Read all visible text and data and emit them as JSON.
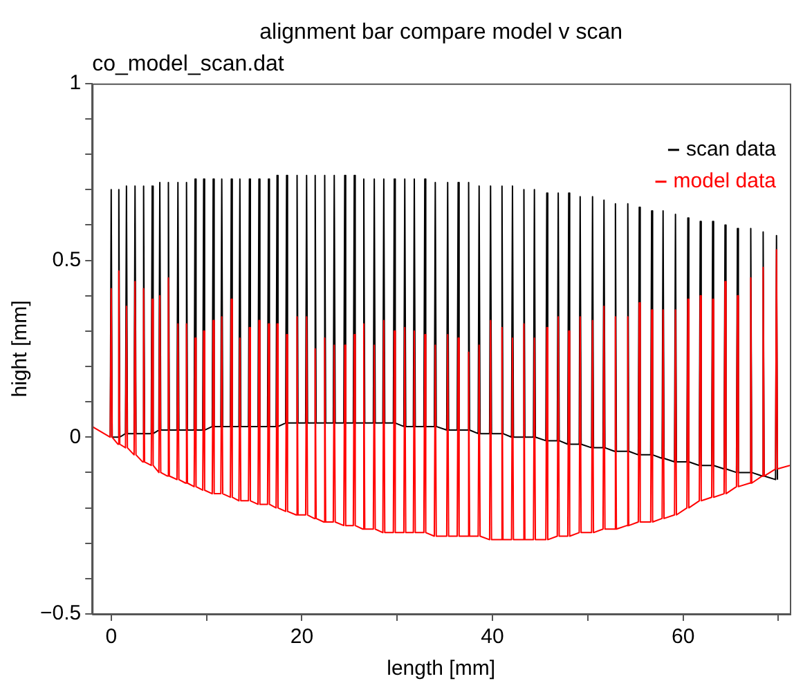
{
  "chart_data": {
    "type": "line",
    "title": "alignment bar compare model v scan",
    "subtitle": "co_model_scan.dat",
    "xlabel": "length [mm]",
    "ylabel": "hight [mm]",
    "xlim": [
      -2,
      71.2
    ],
    "ylim": [
      -0.5,
      1
    ],
    "xticks": [
      0,
      {
        "value": 10,
        "label": null
      },
      20,
      {
        "value": 30,
        "label": null
      },
      40,
      {
        "value": 50,
        "label": null
      },
      60,
      {
        "value": 70,
        "label": null
      }
    ],
    "yticks": [
      {
        "value": -0.5,
        "label": "−0.5"
      },
      {
        "value": -0.4,
        "label": null
      },
      {
        "value": -0.3,
        "label": null
      },
      {
        "value": -0.2,
        "label": null
      },
      {
        "value": -0.1,
        "label": null
      },
      0,
      {
        "value": 0.1,
        "label": null
      },
      {
        "value": 0.2,
        "label": null
      },
      {
        "value": 0.3,
        "label": null
      },
      {
        "value": 0.4,
        "label": null
      },
      0.5,
      {
        "value": 0.6,
        "label": null
      },
      {
        "value": 0.7,
        "label": null
      },
      {
        "value": 0.8,
        "label": null
      },
      {
        "value": 0.9,
        "label": null
      },
      1
    ],
    "legend": "top right",
    "marker": "none",
    "line_style": "solid",
    "series": [
      {
        "name": "scan data",
        "color": "#000000",
        "x": [
          -0.1,
          0,
          0.1,
          0.7,
          0.8,
          0.9,
          1.5,
          1.6,
          1.7,
          2.4,
          2.5,
          2.6,
          3.3,
          3.4,
          3.5,
          4.2,
          4.3,
          4.4,
          5.0,
          5.1,
          5.2,
          5.9,
          6.0,
          6.1,
          6.9,
          7.0,
          7.1,
          7.8,
          7.9,
          8.0,
          8.7,
          8.8,
          8.9,
          9.6,
          9.7,
          9.8,
          10.6,
          10.7,
          10.8,
          11.5,
          11.6,
          11.7,
          12.5,
          12.6,
          12.7,
          13.4,
          13.5,
          13.6,
          14.4,
          14.5,
          14.6,
          15.4,
          15.5,
          15.6,
          16.4,
          16.5,
          16.6,
          17.3,
          17.4,
          17.5,
          18.3,
          18.4,
          18.5,
          19.4,
          19.5,
          19.6,
          20.4,
          20.5,
          20.6,
          21.3,
          21.4,
          21.5,
          22.3,
          22.4,
          22.5,
          23.3,
          23.4,
          23.5,
          24.4,
          24.5,
          24.6,
          25.4,
          25.5,
          25.6,
          26.4,
          26.5,
          26.6,
          27.5,
          27.6,
          27.7,
          28.5,
          28.6,
          28.7,
          29.6,
          29.7,
          29.8,
          30.7,
          30.8,
          30.9,
          31.7,
          31.8,
          31.9,
          32.8,
          32.9,
          33.0,
          33.9,
          34.0,
          34.1,
          35.2,
          35.3,
          35.4,
          36.3,
          36.4,
          36.5,
          37.4,
          37.5,
          37.6,
          38.5,
          38.6,
          38.7,
          39.7,
          39.8,
          39.9,
          40.9,
          41.0,
          41.1,
          42.0,
          42.1,
          42.2,
          43.2,
          43.3,
          43.4,
          44.3,
          44.4,
          44.5,
          45.6,
          45.7,
          45.8,
          46.8,
          46.9,
          47.0,
          47.9,
          48.0,
          48.1,
          49.1,
          49.2,
          49.3,
          50.4,
          50.5,
          50.6,
          51.6,
          51.7,
          51.8,
          52.8,
          52.9,
          53.0,
          54.1,
          54.2,
          54.3,
          55.3,
          55.4,
          55.5,
          56.6,
          56.7,
          56.8,
          57.8,
          57.9,
          58.0,
          59.1,
          59.2,
          59.3,
          60.4,
          60.5,
          60.6,
          61.7,
          61.8,
          61.9,
          63.0,
          63.1,
          63.2,
          64.3,
          64.4,
          64.5,
          65.6,
          65.7,
          65.8,
          67.0,
          67.1,
          67.2,
          68.3,
          68.4,
          68.5,
          69.7,
          69.8,
          69.9
        ],
        "values": [
          0,
          0.7,
          0,
          0,
          0.7,
          0,
          0.01,
          0.71,
          0.01,
          0.01,
          0.71,
          0.01,
          0.01,
          0.71,
          0.01,
          0.01,
          0.71,
          0.01,
          0.02,
          0.72,
          0.02,
          0.02,
          0.72,
          0.02,
          0.02,
          0.72,
          0.02,
          0.02,
          0.72,
          0.02,
          0.02,
          0.73,
          0.02,
          0.02,
          0.73,
          0.02,
          0.03,
          0.73,
          0.03,
          0.03,
          0.73,
          0.03,
          0.03,
          0.73,
          0.03,
          0.03,
          0.73,
          0.03,
          0.03,
          0.73,
          0.03,
          0.03,
          0.73,
          0.03,
          0.03,
          0.73,
          0.03,
          0.03,
          0.74,
          0.03,
          0.04,
          0.74,
          0.04,
          0.04,
          0.74,
          0.04,
          0.04,
          0.74,
          0.04,
          0.04,
          0.74,
          0.04,
          0.04,
          0.74,
          0.04,
          0.04,
          0.74,
          0.04,
          0.04,
          0.74,
          0.04,
          0.04,
          0.74,
          0.04,
          0.04,
          0.73,
          0.04,
          0.04,
          0.73,
          0.04,
          0.04,
          0.73,
          0.04,
          0.04,
          0.73,
          0.04,
          0.03,
          0.73,
          0.03,
          0.03,
          0.73,
          0.03,
          0.03,
          0.73,
          0.03,
          0.03,
          0.72,
          0.03,
          0.02,
          0.72,
          0.02,
          0.02,
          0.72,
          0.02,
          0.02,
          0.72,
          0.02,
          0.01,
          0.71,
          0.01,
          0.01,
          0.71,
          0.01,
          0.01,
          0.71,
          0.01,
          0,
          0.71,
          0,
          0,
          0.7,
          0,
          0,
          0.7,
          0,
          -0.01,
          0.69,
          -0.01,
          -0.01,
          0.69,
          -0.01,
          -0.02,
          0.69,
          -0.02,
          -0.02,
          0.68,
          -0.02,
          -0.03,
          0.68,
          -0.03,
          -0.03,
          0.67,
          -0.03,
          -0.04,
          0.66,
          -0.04,
          -0.04,
          0.66,
          -0.04,
          -0.05,
          0.65,
          -0.05,
          -0.05,
          0.64,
          -0.05,
          -0.06,
          0.64,
          -0.06,
          -0.07,
          0.63,
          -0.07,
          -0.07,
          0.62,
          -0.07,
          -0.08,
          0.61,
          -0.08,
          -0.08,
          0.61,
          -0.08,
          -0.09,
          0.6,
          -0.09,
          -0.1,
          0.59,
          -0.1,
          -0.1,
          0.59,
          -0.1,
          -0.11,
          0.58,
          -0.11,
          -0.12,
          0.57,
          -0.12
        ]
      },
      {
        "name": "model data",
        "color": "#ff0000",
        "x": [
          -2,
          -0.1,
          0,
          0.1,
          0.7,
          0.8,
          0.9,
          1.5,
          1.6,
          1.7,
          2.4,
          2.5,
          2.6,
          3.3,
          3.4,
          3.5,
          4.2,
          4.3,
          4.4,
          5.0,
          5.1,
          5.2,
          5.9,
          6.0,
          6.1,
          6.9,
          7.0,
          7.1,
          7.8,
          7.9,
          8.0,
          8.7,
          8.8,
          8.9,
          9.6,
          9.7,
          9.8,
          10.6,
          10.7,
          10.8,
          11.5,
          11.6,
          11.7,
          12.5,
          12.6,
          12.7,
          13.4,
          13.5,
          13.6,
          14.4,
          14.5,
          14.6,
          15.4,
          15.5,
          15.6,
          16.4,
          16.5,
          16.6,
          17.3,
          17.4,
          17.5,
          18.3,
          18.4,
          18.5,
          19.4,
          19.5,
          19.6,
          20.4,
          20.5,
          20.6,
          21.3,
          21.4,
          21.5,
          22.3,
          22.4,
          22.5,
          23.3,
          23.4,
          23.5,
          24.4,
          24.5,
          24.6,
          25.4,
          25.5,
          25.6,
          26.4,
          26.5,
          26.6,
          27.5,
          27.6,
          27.7,
          28.5,
          28.6,
          28.7,
          29.6,
          29.7,
          29.8,
          30.7,
          30.8,
          30.9,
          31.7,
          31.8,
          31.9,
          32.8,
          32.9,
          33.0,
          33.9,
          34.0,
          34.1,
          35.2,
          35.3,
          35.4,
          36.3,
          36.4,
          36.5,
          37.4,
          37.5,
          37.6,
          38.5,
          38.6,
          38.7,
          39.7,
          39.8,
          39.9,
          40.9,
          41.0,
          41.1,
          42.0,
          42.1,
          42.2,
          43.2,
          43.3,
          43.4,
          44.3,
          44.4,
          44.5,
          45.6,
          45.7,
          45.8,
          46.8,
          46.9,
          47.0,
          47.9,
          48.0,
          48.1,
          49.1,
          49.2,
          49.3,
          50.4,
          50.5,
          50.6,
          51.6,
          51.7,
          51.8,
          52.8,
          52.9,
          53.0,
          54.1,
          54.2,
          54.3,
          55.3,
          55.4,
          55.5,
          56.6,
          56.7,
          56.8,
          57.8,
          57.9,
          58.0,
          59.1,
          59.2,
          59.3,
          60.4,
          60.5,
          60.6,
          61.7,
          61.8,
          61.9,
          63.0,
          63.1,
          63.2,
          64.3,
          64.4,
          64.5,
          65.6,
          65.7,
          65.8,
          67.0,
          67.1,
          67.2,
          68.3,
          68.4,
          68.5,
          69.7,
          69.8,
          69.9,
          71.2
        ],
        "values": [
          0.03,
          0,
          0.42,
          0,
          -0.02,
          0.47,
          -0.02,
          -0.03,
          0.37,
          -0.03,
          -0.05,
          0.44,
          -0.05,
          -0.07,
          0.42,
          -0.07,
          -0.08,
          0.39,
          -0.08,
          -0.1,
          0.4,
          -0.1,
          -0.11,
          0.45,
          -0.11,
          -0.12,
          0.32,
          -0.12,
          -0.13,
          0.32,
          -0.13,
          -0.14,
          0.28,
          -0.14,
          -0.15,
          0.3,
          -0.15,
          -0.16,
          0.33,
          -0.16,
          -0.16,
          0.34,
          -0.16,
          -0.17,
          0.39,
          -0.17,
          -0.18,
          0.28,
          -0.18,
          -0.18,
          0.31,
          -0.18,
          -0.19,
          0.33,
          -0.19,
          -0.19,
          0.32,
          -0.19,
          -0.2,
          0.32,
          -0.2,
          -0.21,
          0.29,
          -0.21,
          -0.22,
          0.34,
          -0.22,
          -0.22,
          0.34,
          -0.22,
          -0.23,
          0.25,
          -0.23,
          -0.24,
          0.28,
          -0.24,
          -0.24,
          0.26,
          -0.24,
          -0.25,
          0.26,
          -0.25,
          -0.25,
          0.29,
          -0.25,
          -0.26,
          0.32,
          -0.26,
          -0.26,
          0.26,
          -0.26,
          -0.27,
          0.33,
          -0.27,
          -0.27,
          0.3,
          -0.27,
          -0.27,
          0.31,
          -0.27,
          -0.27,
          0.3,
          -0.27,
          -0.27,
          0.29,
          -0.27,
          -0.28,
          0.26,
          -0.28,
          -0.28,
          0.29,
          -0.28,
          -0.28,
          0.28,
          -0.28,
          -0.28,
          0.24,
          -0.28,
          -0.28,
          0.26,
          -0.28,
          -0.29,
          0.33,
          -0.29,
          -0.29,
          0.31,
          -0.29,
          -0.29,
          0.28,
          -0.29,
          -0.29,
          0.32,
          -0.29,
          -0.29,
          0.28,
          -0.29,
          -0.29,
          0.31,
          -0.29,
          -0.28,
          0.34,
          -0.28,
          -0.28,
          0.3,
          -0.28,
          -0.27,
          0.34,
          -0.27,
          -0.27,
          0.33,
          -0.27,
          -0.26,
          0.37,
          -0.26,
          -0.26,
          0.34,
          -0.26,
          -0.25,
          0.34,
          -0.25,
          -0.24,
          0.38,
          -0.24,
          -0.24,
          0.36,
          -0.24,
          -0.23,
          0.36,
          -0.23,
          -0.22,
          0.36,
          -0.22,
          -0.2,
          0.39,
          -0.2,
          -0.18,
          0.4,
          -0.18,
          -0.17,
          0.39,
          -0.17,
          -0.16,
          0.44,
          -0.16,
          -0.14,
          0.4,
          -0.14,
          -0.13,
          0.45,
          -0.13,
          -0.11,
          0.48,
          -0.11,
          -0.09,
          0.53,
          -0.09,
          -0.08
        ]
      }
    ]
  }
}
